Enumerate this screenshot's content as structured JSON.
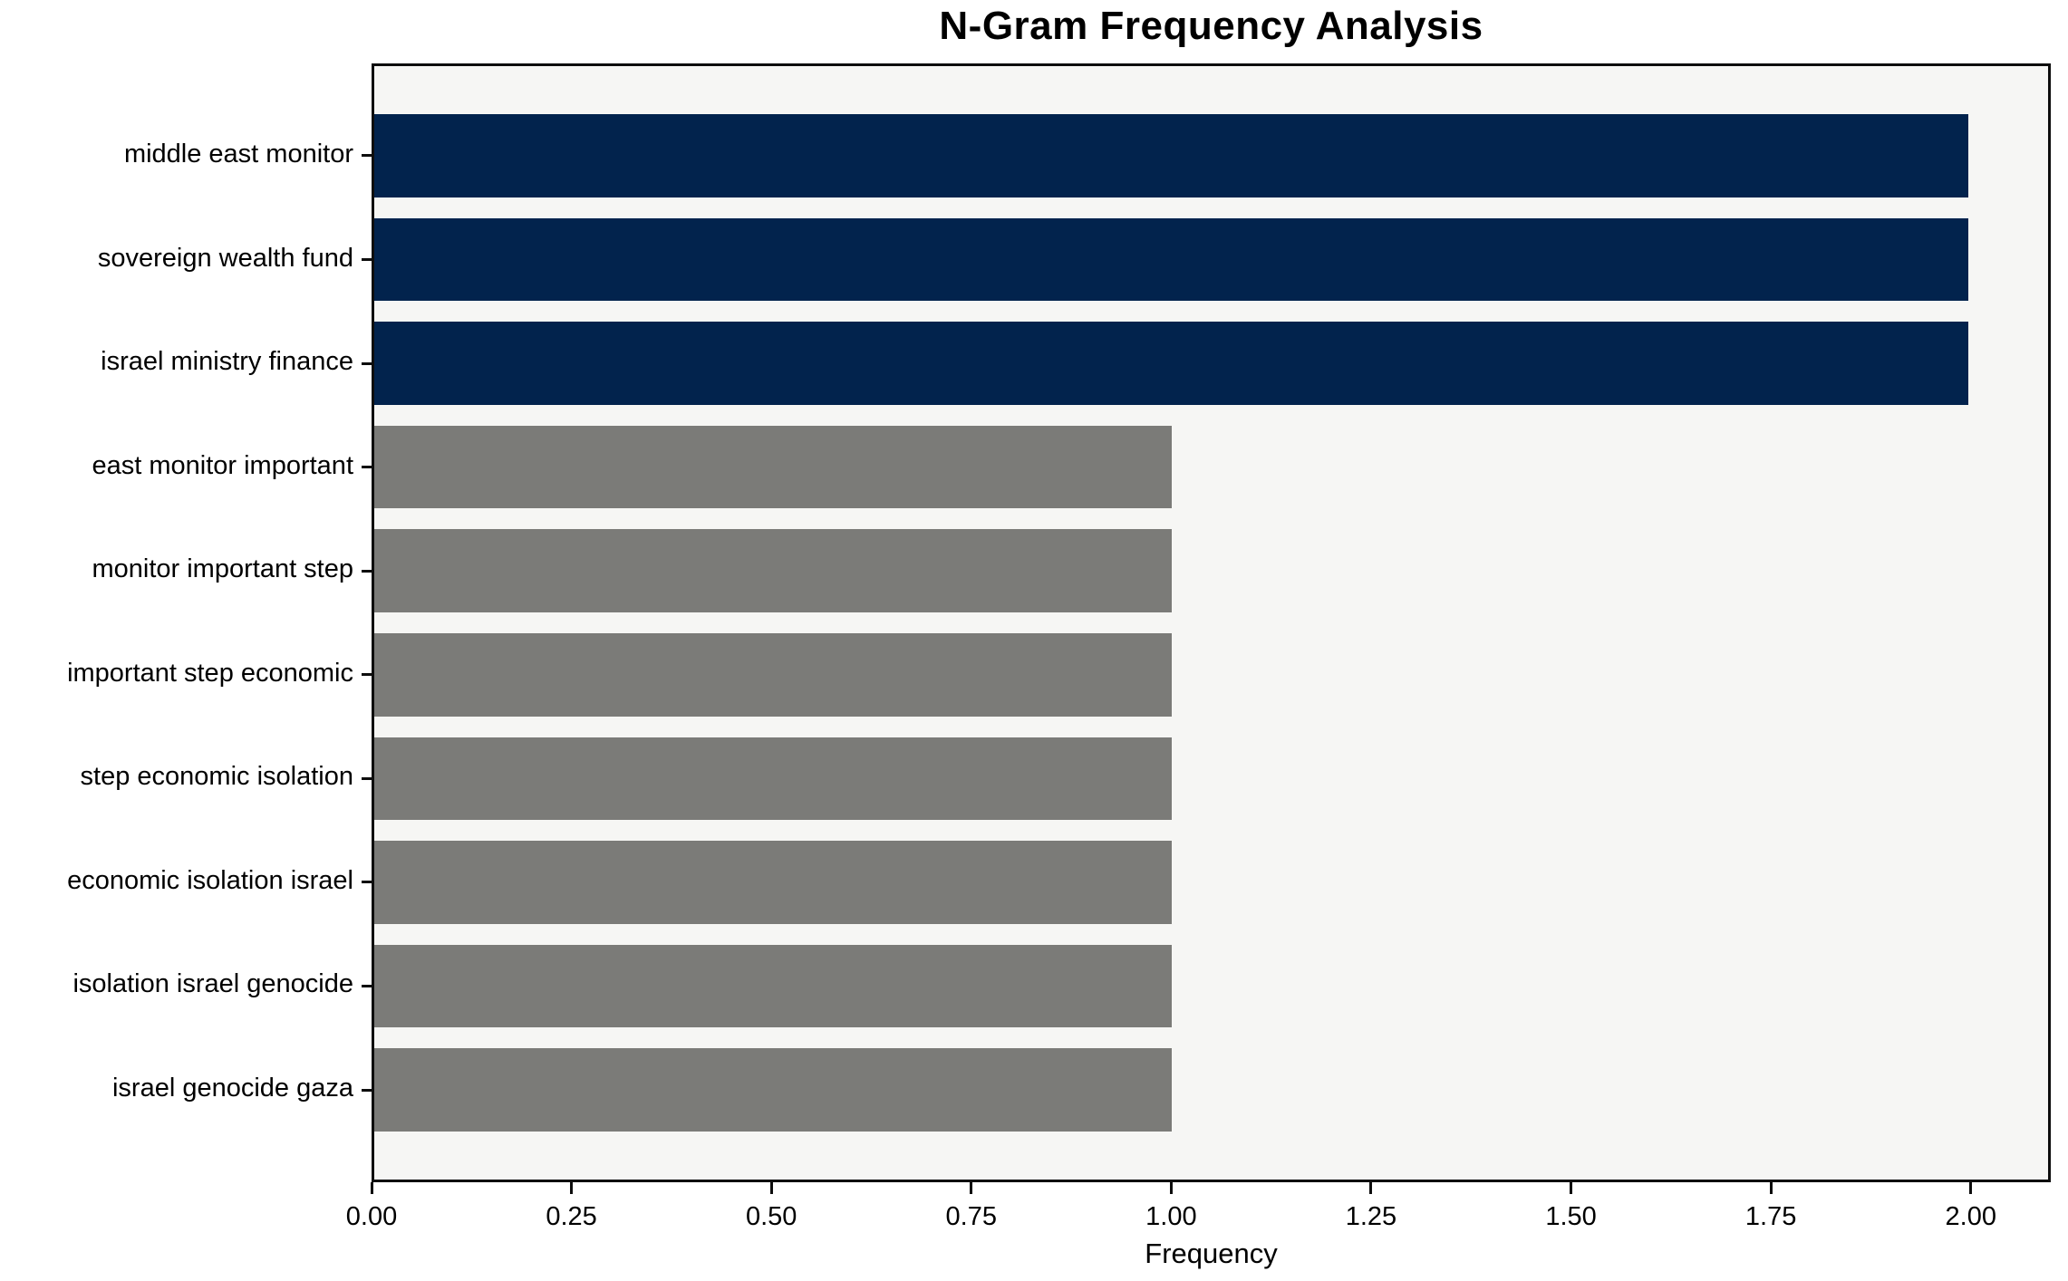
{
  "chart_data": {
    "type": "bar",
    "orientation": "horizontal",
    "title": "N-Gram Frequency Analysis",
    "xlabel": "Frequency",
    "ylabel": "",
    "categories": [
      "middle east monitor",
      "sovereign wealth fund",
      "israel ministry finance",
      "east monitor important",
      "monitor important step",
      "important step economic",
      "step economic isolation",
      "economic isolation israel",
      "isolation israel genocide",
      "israel genocide gaza"
    ],
    "values": [
      2,
      2,
      2,
      1,
      1,
      1,
      1,
      1,
      1,
      1
    ],
    "bar_colors": [
      "#02234d",
      "#02234d",
      "#02234d",
      "#7b7b78",
      "#7b7b78",
      "#7b7b78",
      "#7b7b78",
      "#7b7b78",
      "#7b7b78",
      "#7b7b78"
    ],
    "xticks": [
      "0.00",
      "0.25",
      "0.50",
      "0.75",
      "1.00",
      "1.25",
      "1.50",
      "1.75",
      "2.00"
    ],
    "xtick_values": [
      0,
      0.25,
      0.5,
      0.75,
      1.0,
      1.25,
      1.5,
      1.75,
      2.0
    ],
    "xlim": [
      0,
      2.1
    ],
    "grid": false,
    "legend": "none",
    "colors": {
      "highlight_navy": "#02234d",
      "default_gray": "#7b7b78",
      "plot_background": "#f6f6f4",
      "figure_background": "#ffffff",
      "axis": "#0d0d0d"
    }
  }
}
